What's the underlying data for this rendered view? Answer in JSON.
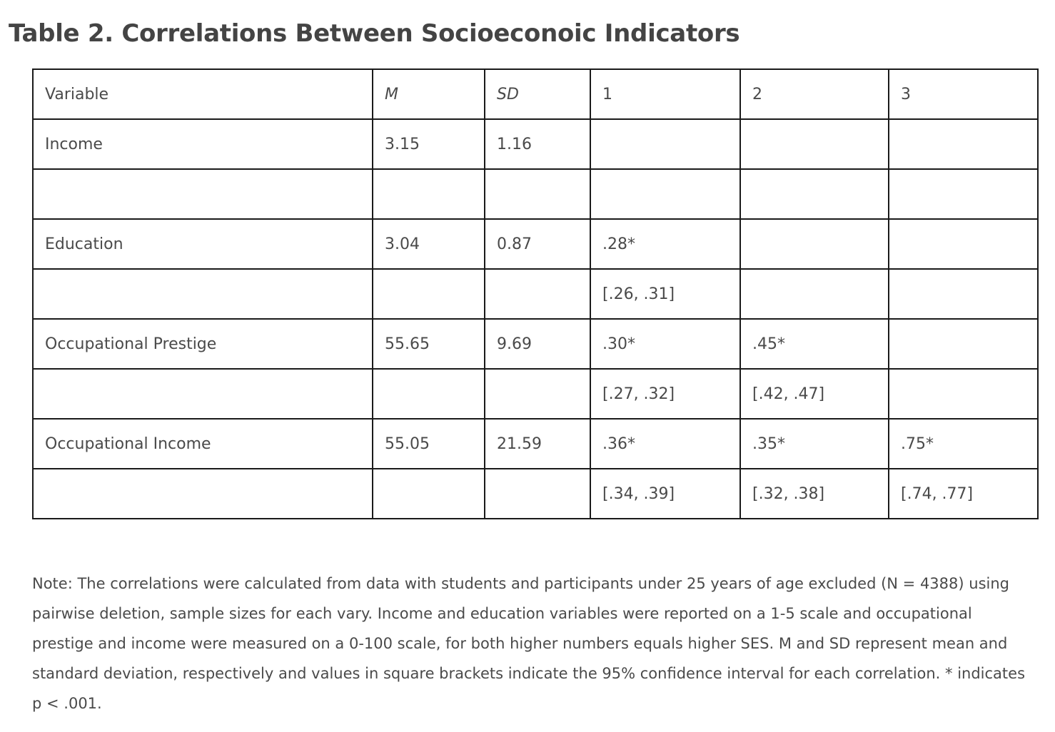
{
  "title": "Table 2. Correlations Between Socioeconoic Indicators",
  "table": {
    "headers": [
      "Variable",
      "M",
      "SD",
      "1",
      "2",
      "3"
    ],
    "rows": [
      [
        "Income",
        "3.15",
        "1.16",
        "",
        "",
        ""
      ],
      [
        "",
        "",
        "",
        "",
        "",
        ""
      ],
      [
        "Education",
        "3.04",
        "0.87",
        ".28*",
        "",
        ""
      ],
      [
        "",
        "",
        "",
        "[.26, .31]",
        "",
        ""
      ],
      [
        "Occupational Prestige",
        "55.65",
        "9.69",
        ".30*",
        ".45*",
        ""
      ],
      [
        "",
        "",
        "",
        "[.27, .32]",
        "[.42, .47]",
        ""
      ],
      [
        "Occupational Income",
        "55.05",
        "21.59",
        ".36*",
        ".35*",
        ".75*"
      ],
      [
        "",
        "",
        "",
        "[.34, .39]",
        "[.32, .38]",
        "[.74, .77]"
      ]
    ]
  },
  "note": "Note: The correlations were calculated from data with students and participants under 25 years of age excluded (N = 4388) using pairwise deletion, sample sizes for each vary. Income and education variables were reported on a 1-5 scale and occupational prestige and income were measured on a 0-100 scale, for both higher numbers equals higher SES. M and SD represent mean and standard deviation, respectively and values in square brackets indicate the 95% confidence interval for each correlation. * indicates p < .001."
}
